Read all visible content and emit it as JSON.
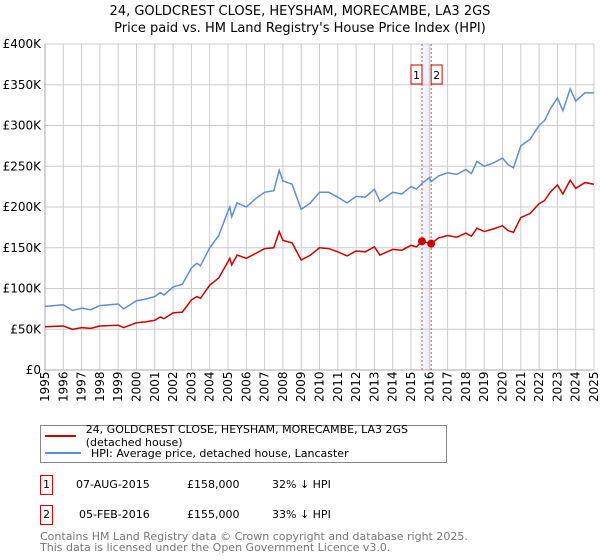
{
  "title": "24, GOLDCREST CLOSE, HEYSHAM, MORECAMBE, LA3 2GS",
  "subtitle": "Price paid vs. HM Land Registry's House Price Index (HPI)",
  "chart_data": {
    "type": "line",
    "title": "24, GOLDCREST CLOSE, HEYSHAM, MORECAMBE, LA3 2GS",
    "subtitle": "Price paid vs. HM Land Registry's House Price Index (HPI)",
    "xlim": [
      1995,
      2025
    ],
    "ylim": [
      0,
      400000
    ],
    "grid": true,
    "y_ticks": [
      0,
      50000,
      100000,
      150000,
      200000,
      250000,
      300000,
      350000,
      400000
    ],
    "y_tick_labels": [
      "£0",
      "£50K",
      "£100K",
      "£150K",
      "£200K",
      "£250K",
      "£300K",
      "£350K",
      "£400K"
    ],
    "x_ticks": [
      "1995",
      "1996",
      "1997",
      "1998",
      "1999",
      "2000",
      "2001",
      "2002",
      "2003",
      "2004",
      "2005",
      "2006",
      "2007",
      "2008",
      "2009",
      "2010",
      "2011",
      "2012",
      "2013",
      "2014",
      "2015",
      "2016",
      "2017",
      "2018",
      "2019",
      "2020",
      "2021",
      "2022",
      "2023",
      "2024",
      "2025"
    ],
    "series": [
      {
        "name": "24, GOLDCREST CLOSE, HEYSHAM, MORECAMBE, LA3 2GS (detached house)",
        "color": "#cc0000",
        "x": [
          1995,
          1996,
          1996.5,
          1997,
          1997.5,
          1998,
          1999,
          1999.3,
          2000,
          2000.5,
          2001,
          2001.3,
          2001.5,
          2002,
          2002.5,
          2003,
          2003.3,
          2003.5,
          2004,
          2004.5,
          2005,
          2005.1,
          2005.2,
          2005.5,
          2006,
          2006.5,
          2007,
          2007.5,
          2007.8,
          2008,
          2008.5,
          2009,
          2009.5,
          2010,
          2010.5,
          2011,
          2011.5,
          2012,
          2012.5,
          2013,
          2013.3,
          2014,
          2014.5,
          2015,
          2015.3,
          2015.6,
          2016.1,
          2016.5,
          2017,
          2017.5,
          2018,
          2018.3,
          2018.6,
          2019,
          2019.5,
          2020,
          2020.3,
          2020.6,
          2021,
          2021.5,
          2022,
          2022.3,
          2022.6,
          2023,
          2023.3,
          2023.7,
          2024,
          2024.5,
          2025
        ],
        "y": [
          53000,
          54000,
          50000,
          52000,
          51000,
          54000,
          55000,
          52000,
          58000,
          59000,
          61000,
          65000,
          63000,
          70000,
          71000,
          86000,
          90000,
          88000,
          104000,
          113000,
          133000,
          137000,
          129000,
          141000,
          137000,
          143000,
          149000,
          150000,
          170000,
          159000,
          156000,
          135000,
          141000,
          150000,
          149000,
          145000,
          140000,
          146000,
          145000,
          151000,
          141000,
          148000,
          147000,
          153000,
          151000,
          158000,
          155000,
          162000,
          165000,
          163000,
          168000,
          164000,
          174000,
          170000,
          173000,
          177000,
          171000,
          169000,
          187000,
          192000,
          204000,
          208000,
          218000,
          227000,
          216000,
          233000,
          223000,
          230000,
          228000
        ]
      },
      {
        "name": "HPI: Average price, detached house, Lancaster",
        "color": "#5f8fd0",
        "x": [
          1995,
          1996,
          1996.5,
          1997,
          1997.5,
          1998,
          1999,
          1999.3,
          2000,
          2000.5,
          2001,
          2001.3,
          2001.5,
          2002,
          2002.5,
          2003,
          2003.3,
          2003.5,
          2004,
          2004.5,
          2005,
          2005.1,
          2005.2,
          2005.5,
          2006,
          2006.5,
          2007,
          2007.5,
          2007.8,
          2008,
          2008.5,
          2009,
          2009.5,
          2010,
          2010.5,
          2011,
          2011.5,
          2012,
          2012.5,
          2013,
          2013.3,
          2014,
          2014.5,
          2015,
          2015.3,
          2015.6,
          2016,
          2016.1,
          2016.5,
          2017,
          2017.5,
          2018,
          2018.3,
          2018.6,
          2019,
          2019.5,
          2020,
          2020.3,
          2020.6,
          2021,
          2021.5,
          2022,
          2022.3,
          2022.6,
          2023,
          2023.3,
          2023.7,
          2024,
          2024.5,
          2025
        ],
        "y": [
          78000,
          80000,
          73000,
          76000,
          74000,
          79000,
          81000,
          75000,
          85000,
          87000,
          90000,
          95000,
          92000,
          102000,
          105000,
          125000,
          131000,
          128000,
          150000,
          165000,
          195000,
          200000,
          188000,
          205000,
          200000,
          210000,
          218000,
          220000,
          245000,
          232000,
          228000,
          197000,
          205000,
          218000,
          218000,
          212000,
          205000,
          213000,
          212000,
          222000,
          207000,
          218000,
          216000,
          225000,
          222000,
          229000,
          236000,
          231000,
          238000,
          242000,
          240000,
          246000,
          241000,
          256000,
          250000,
          254000,
          260000,
          252000,
          248000,
          275000,
          283000,
          300000,
          306000,
          320000,
          334000,
          318000,
          345000,
          330000,
          340000,
          340000
        ]
      }
    ],
    "sales": [
      {
        "label": "1",
        "x": 2015.6,
        "y": 158000
      },
      {
        "label": "2",
        "x": 2016.1,
        "y": 155000
      }
    ]
  },
  "legend": {
    "property": "24, GOLDCREST CLOSE, HEYSHAM, MORECAMBE, LA3 2GS (detached house)",
    "hpi": "HPI: Average price, detached house, Lancaster"
  },
  "transactions": [
    {
      "num": "1",
      "date": "07-AUG-2015",
      "price": "£158,000",
      "diff": "32% ↓ HPI"
    },
    {
      "num": "2",
      "date": "05-FEB-2016",
      "price": "£155,000",
      "diff": "33% ↓ HPI"
    }
  ],
  "footer": {
    "line1": "Contains HM Land Registry data © Crown copyright and database right 2025.",
    "line2": "This data is licensed under the Open Government Licence v3.0."
  }
}
